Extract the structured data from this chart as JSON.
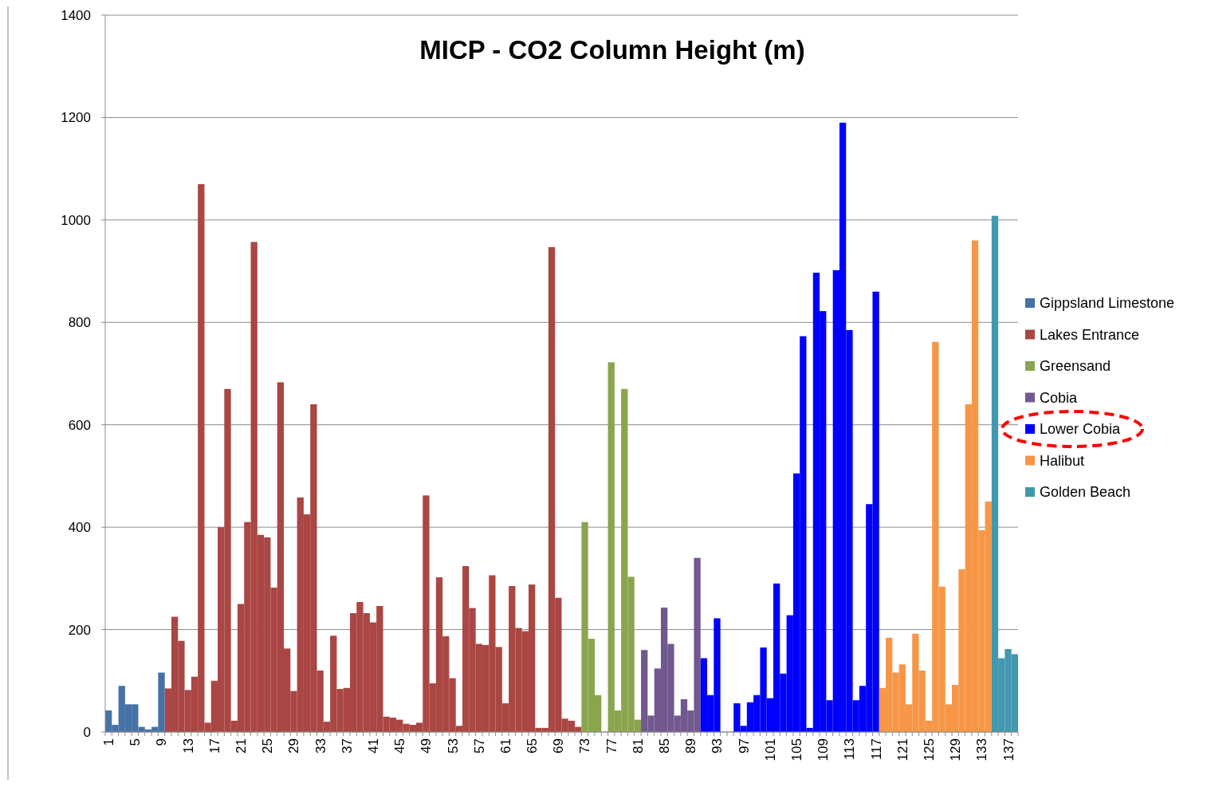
{
  "chart_data": {
    "type": "bar",
    "title": "MICP - CO2 Column Height (m)",
    "categories": [
      "1",
      null,
      null,
      null,
      "5",
      null,
      null,
      null,
      "9",
      null,
      null,
      null,
      "13",
      null,
      null,
      null,
      "17",
      null,
      null,
      null,
      "21",
      null,
      null,
      null,
      "25",
      null,
      null,
      null,
      "29",
      null,
      null,
      null,
      "33",
      null,
      null,
      null,
      "37",
      null,
      null,
      null,
      "41",
      null,
      null,
      null,
      "45",
      null,
      null,
      null,
      "49",
      null,
      null,
      null,
      "53",
      null,
      null,
      null,
      "57",
      null,
      null,
      null,
      "61",
      null,
      null,
      null,
      "65",
      null,
      null,
      null,
      "69",
      null,
      null,
      null,
      "73",
      null,
      null,
      null,
      "77",
      null,
      null,
      null,
      "81",
      null,
      null,
      null,
      "85",
      null,
      null,
      null,
      "89",
      null,
      null,
      null,
      "93",
      null,
      null,
      null,
      "97",
      null,
      null,
      null,
      "101",
      null,
      null,
      null,
      "105",
      null,
      null,
      null,
      "109",
      null,
      null,
      null,
      "113",
      null,
      null,
      null,
      "117",
      null,
      null,
      null,
      "121",
      null,
      null,
      null,
      "125",
      null,
      null,
      null,
      "129",
      null,
      null,
      null,
      "133",
      null,
      null,
      null,
      "137",
      null
    ],
    "series": [
      {
        "name": "Gippsland Limestone",
        "color": "#4572a7",
        "values": [
          42,
          14,
          90,
          54,
          54,
          10,
          5,
          10,
          116,
          null,
          null,
          null,
          null,
          null,
          null,
          null,
          null,
          null,
          null,
          null,
          null,
          null,
          null,
          null,
          null,
          null,
          null,
          null,
          null,
          null,
          null,
          null,
          null,
          null,
          null,
          null,
          null,
          null,
          null,
          null,
          null,
          null,
          null,
          null,
          null,
          null,
          null,
          null,
          null,
          null,
          null,
          null,
          null,
          null,
          null,
          null,
          null,
          null,
          null,
          null,
          null,
          null,
          null,
          null,
          null,
          null,
          null,
          null,
          null,
          null,
          null,
          null,
          null,
          null,
          null,
          null,
          null,
          null,
          null,
          null,
          null,
          null,
          null,
          null,
          null,
          null,
          null,
          null,
          null,
          null,
          null,
          null,
          null,
          null,
          null,
          null,
          null,
          null,
          null,
          null,
          null,
          null,
          null,
          null,
          null,
          null,
          null,
          null,
          null,
          null,
          null,
          null,
          null,
          null,
          null,
          null,
          null,
          null,
          null,
          null,
          null,
          null,
          null,
          null,
          null,
          null,
          null,
          null,
          null,
          null,
          null,
          null,
          null,
          null,
          null,
          null,
          null,
          null
        ]
      },
      {
        "name": "Lakes Entrance",
        "color": "#aa4643",
        "values": [
          null,
          null,
          null,
          null,
          null,
          null,
          null,
          null,
          null,
          85,
          225,
          178,
          82,
          108,
          1070,
          18,
          100,
          400,
          670,
          22,
          250,
          410,
          957,
          385,
          380,
          282,
          683,
          163,
          80,
          458,
          425,
          640,
          120,
          20,
          188,
          84,
          86,
          232,
          254,
          232,
          214,
          246,
          30,
          28,
          24,
          16,
          14,
          18,
          462,
          95,
          302,
          187,
          105,
          12,
          324,
          242,
          172,
          170,
          306,
          166,
          56,
          285,
          203,
          197,
          288,
          8,
          8,
          947,
          262,
          26,
          22,
          10,
          null,
          null,
          null,
          null,
          null,
          null,
          null,
          null,
          null,
          null,
          null,
          null,
          null,
          null,
          null,
          null,
          null,
          null,
          null,
          null,
          null,
          null,
          null,
          null,
          null,
          null,
          null,
          null,
          null,
          null,
          null,
          null,
          null,
          null,
          null,
          null,
          null,
          null,
          null,
          null,
          null,
          null,
          null,
          null,
          null,
          null,
          null,
          null,
          null,
          null,
          null,
          null,
          null,
          null,
          null,
          null,
          null,
          null,
          null,
          null,
          null,
          null,
          null,
          null,
          null,
          null
        ]
      },
      {
        "name": "Greensand",
        "color": "#89a54e",
        "values": [
          null,
          null,
          null,
          null,
          null,
          null,
          null,
          null,
          null,
          null,
          null,
          null,
          null,
          null,
          null,
          null,
          null,
          null,
          null,
          null,
          null,
          null,
          null,
          null,
          null,
          null,
          null,
          null,
          null,
          null,
          null,
          null,
          null,
          null,
          null,
          null,
          null,
          null,
          null,
          null,
          null,
          null,
          null,
          null,
          null,
          null,
          null,
          null,
          null,
          null,
          null,
          null,
          null,
          null,
          null,
          null,
          null,
          null,
          null,
          null,
          null,
          null,
          null,
          null,
          null,
          null,
          null,
          null,
          null,
          null,
          null,
          null,
          410,
          182,
          72,
          null,
          722,
          42,
          670,
          303,
          24,
          null,
          null,
          null,
          null,
          null,
          null,
          null,
          null,
          null,
          null,
          null,
          null,
          null,
          null,
          null,
          null,
          null,
          null,
          null,
          null,
          null,
          null,
          null,
          null,
          null,
          null,
          null,
          null,
          null,
          null,
          null,
          null,
          null,
          null,
          null,
          null,
          null,
          null,
          null,
          null,
          null,
          null,
          null,
          null,
          null,
          null,
          null,
          null,
          null,
          null,
          null,
          null,
          null,
          null,
          null,
          null,
          null
        ]
      },
      {
        "name": "Cobia",
        "color": "#71588f",
        "values": [
          null,
          null,
          null,
          null,
          null,
          null,
          null,
          null,
          null,
          null,
          null,
          null,
          null,
          null,
          null,
          null,
          null,
          null,
          null,
          null,
          null,
          null,
          null,
          null,
          null,
          null,
          null,
          null,
          null,
          null,
          null,
          null,
          null,
          null,
          null,
          null,
          null,
          null,
          null,
          null,
          null,
          null,
          null,
          null,
          null,
          null,
          null,
          null,
          null,
          null,
          null,
          null,
          null,
          null,
          null,
          null,
          null,
          null,
          null,
          null,
          null,
          null,
          null,
          null,
          null,
          null,
          null,
          null,
          null,
          null,
          null,
          null,
          null,
          null,
          null,
          null,
          null,
          null,
          null,
          null,
          null,
          160,
          32,
          124,
          243,
          172,
          32,
          64,
          42,
          340,
          null,
          null,
          null,
          null,
          null,
          null,
          null,
          null,
          null,
          null,
          null,
          null,
          null,
          null,
          null,
          null,
          null,
          null,
          null,
          null,
          null,
          null,
          null,
          null,
          null,
          null,
          null,
          null,
          null,
          null,
          null,
          null,
          null,
          null,
          null,
          null,
          null,
          null,
          null,
          null,
          null,
          null,
          null,
          null,
          null,
          null,
          null,
          null
        ]
      },
      {
        "name": "Lower Cobia",
        "color": "#0000ff",
        "values": [
          null,
          null,
          null,
          null,
          null,
          null,
          null,
          null,
          null,
          null,
          null,
          null,
          null,
          null,
          null,
          null,
          null,
          null,
          null,
          null,
          null,
          null,
          null,
          null,
          null,
          null,
          null,
          null,
          null,
          null,
          null,
          null,
          null,
          null,
          null,
          null,
          null,
          null,
          null,
          null,
          null,
          null,
          null,
          null,
          null,
          null,
          null,
          null,
          null,
          null,
          null,
          null,
          null,
          null,
          null,
          null,
          null,
          null,
          null,
          null,
          null,
          null,
          null,
          null,
          null,
          null,
          null,
          null,
          null,
          null,
          null,
          null,
          null,
          null,
          null,
          null,
          null,
          null,
          null,
          null,
          null,
          null,
          null,
          null,
          null,
          null,
          null,
          null,
          null,
          null,
          144,
          72,
          222,
          null,
          null,
          56,
          12,
          58,
          72,
          165,
          66,
          290,
          114,
          228,
          505,
          773,
          8,
          897,
          822,
          62,
          902,
          1190,
          785,
          62,
          90,
          445,
          860,
          null,
          null,
          null,
          null,
          null,
          null,
          null,
          null,
          null,
          null,
          null,
          null,
          null,
          null,
          null,
          null,
          null,
          null,
          null,
          null,
          null
        ]
      },
      {
        "name": "Halibut",
        "color": "#f79646",
        "values": [
          null,
          null,
          null,
          null,
          null,
          null,
          null,
          null,
          null,
          null,
          null,
          null,
          null,
          null,
          null,
          null,
          null,
          null,
          null,
          null,
          null,
          null,
          null,
          null,
          null,
          null,
          null,
          null,
          null,
          null,
          null,
          null,
          null,
          null,
          null,
          null,
          null,
          null,
          null,
          null,
          null,
          null,
          null,
          null,
          null,
          null,
          null,
          null,
          null,
          null,
          null,
          null,
          null,
          null,
          null,
          null,
          null,
          null,
          null,
          null,
          null,
          null,
          null,
          null,
          null,
          null,
          null,
          null,
          null,
          null,
          null,
          null,
          null,
          null,
          null,
          null,
          null,
          null,
          null,
          null,
          null,
          null,
          null,
          null,
          null,
          null,
          null,
          null,
          null,
          null,
          null,
          null,
          null,
          null,
          null,
          null,
          null,
          null,
          null,
          null,
          null,
          null,
          null,
          null,
          null,
          null,
          null,
          null,
          null,
          null,
          null,
          null,
          null,
          null,
          null,
          null,
          null,
          86,
          184,
          116,
          132,
          54,
          192,
          120,
          22,
          762,
          284,
          54,
          92,
          318,
          640,
          960,
          394,
          450,
          null,
          null,
          null,
          null
        ]
      },
      {
        "name": "Golden Beach",
        "color": "#4198af",
        "values": [
          null,
          null,
          null,
          null,
          null,
          null,
          null,
          null,
          null,
          null,
          null,
          null,
          null,
          null,
          null,
          null,
          null,
          null,
          null,
          null,
          null,
          null,
          null,
          null,
          null,
          null,
          null,
          null,
          null,
          null,
          null,
          null,
          null,
          null,
          null,
          null,
          null,
          null,
          null,
          null,
          null,
          null,
          null,
          null,
          null,
          null,
          null,
          null,
          null,
          null,
          null,
          null,
          null,
          null,
          null,
          null,
          null,
          null,
          null,
          null,
          null,
          null,
          null,
          null,
          null,
          null,
          null,
          null,
          null,
          null,
          null,
          null,
          null,
          null,
          null,
          null,
          null,
          null,
          null,
          null,
          null,
          null,
          null,
          null,
          null,
          null,
          null,
          null,
          null,
          null,
          null,
          null,
          null,
          null,
          null,
          null,
          null,
          null,
          null,
          null,
          null,
          null,
          null,
          null,
          null,
          null,
          null,
          null,
          null,
          null,
          null,
          null,
          null,
          null,
          null,
          null,
          null,
          null,
          null,
          null,
          null,
          null,
          null,
          null,
          null,
          null,
          null,
          null,
          null,
          null,
          null,
          null,
          null,
          null,
          1008,
          144,
          162,
          152
        ]
      }
    ],
    "ylim": [
      0,
      1400
    ],
    "yticks": [
      0,
      200,
      400,
      600,
      800,
      1000,
      1200,
      1400
    ],
    "grid": "y",
    "legend": "right"
  }
}
